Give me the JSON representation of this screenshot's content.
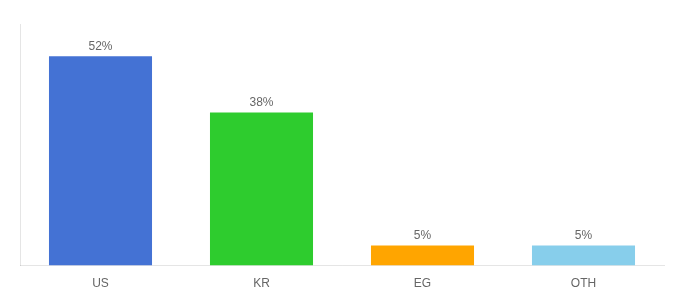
{
  "chart_data": {
    "type": "bar",
    "categories": [
      "US",
      "KR",
      "EG",
      "OTH"
    ],
    "values": [
      52,
      38,
      5,
      5
    ],
    "value_labels": [
      "52%",
      "38%",
      "5%",
      "5%"
    ],
    "colors": [
      "#4472D4",
      "#2ECC2E",
      "#FFA500",
      "#87CEEB"
    ],
    "ylim": [
      0,
      60
    ],
    "data_labels": true,
    "tick_labels": "x",
    "grid": false
  }
}
